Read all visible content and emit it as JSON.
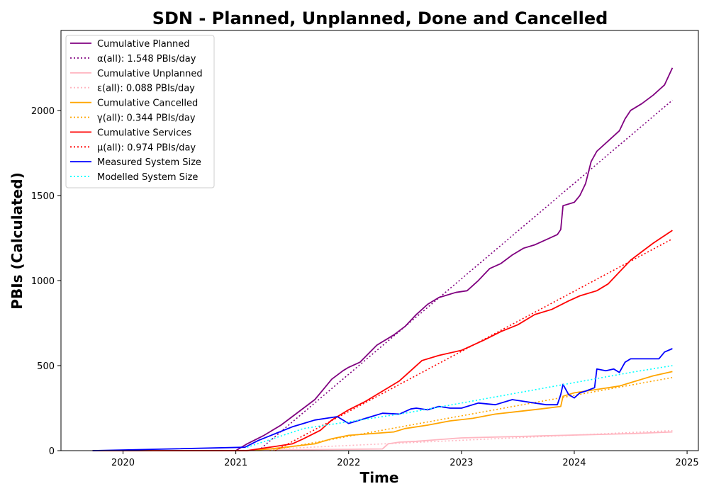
{
  "chart_data": {
    "type": "line",
    "title": "SDN - Planned, Unplanned, Done  and Cancelled",
    "xlabel": "Time",
    "ylabel": "PBIs (Calculated)",
    "x_ticks": [
      "2020",
      "2021",
      "2022",
      "2023",
      "2024",
      "2025"
    ],
    "y_ticks": [
      "0",
      "500",
      "1000",
      "1500",
      "2000"
    ],
    "xlim": [
      2019.45,
      2025.1
    ],
    "ylim": [
      0,
      2470
    ],
    "grid": false,
    "legend_position": "top-left",
    "series": [
      {
        "name": "Cumulative Planned",
        "color": "#800080",
        "style": "solid",
        "x": [
          2019.73,
          2021.0,
          2021.1,
          2021.25,
          2021.4,
          2021.5,
          2021.6,
          2021.7,
          2021.75,
          2021.85,
          2021.95,
          2022.0,
          2022.1,
          2022.25,
          2022.4,
          2022.5,
          2022.6,
          2022.7,
          2022.8,
          2022.85,
          2022.95,
          2023.05,
          2023.15,
          2023.25,
          2023.35,
          2023.45,
          2023.55,
          2023.65,
          2023.75,
          2023.85,
          2023.88,
          2023.9,
          2024.0,
          2024.05,
          2024.1,
          2024.15,
          2024.2,
          2024.3,
          2024.4,
          2024.45,
          2024.5,
          2024.6,
          2024.7,
          2024.8,
          2024.87
        ],
        "y": [
          0,
          0,
          40,
          90,
          150,
          200,
          250,
          300,
          340,
          420,
          470,
          490,
          520,
          620,
          680,
          730,
          800,
          860,
          900,
          910,
          930,
          940,
          1000,
          1070,
          1100,
          1150,
          1190,
          1210,
          1240,
          1270,
          1300,
          1440,
          1460,
          1500,
          1570,
          1700,
          1760,
          1820,
          1880,
          1950,
          2000,
          2040,
          2090,
          2150,
          2250
        ]
      },
      {
        "name": "α(all): 1.548 PBIs/day",
        "color": "#800080",
        "style": "dotted",
        "x": [
          2021.2,
          2024.87
        ],
        "y": [
          0,
          2060
        ]
      },
      {
        "name": "Cumulative Unplanned",
        "color": "#ffb6c1",
        "style": "solid",
        "x": [
          2019.73,
          2021.0,
          2021.3,
          2021.5,
          2022.0,
          2022.3,
          2022.35,
          2022.45,
          2022.6,
          2022.8,
          2023.0,
          2023.3,
          2023.6,
          2023.9,
          2024.2,
          2024.5,
          2024.87
        ],
        "y": [
          0,
          0,
          2,
          5,
          8,
          10,
          40,
          50,
          55,
          65,
          75,
          80,
          85,
          90,
          95,
          100,
          110
        ]
      },
      {
        "name": "ε(all): 0.088 PBIs/day",
        "color": "#ffb6c1",
        "style": "dotted",
        "x": [
          2021.0,
          2024.87
        ],
        "y": [
          0,
          118
        ]
      },
      {
        "name": "Cumulative Cancelled",
        "color": "#ffa500",
        "style": "solid",
        "x": [
          2019.73,
          2021.1,
          2021.3,
          2021.5,
          2021.7,
          2021.85,
          2022.0,
          2022.2,
          2022.4,
          2022.5,
          2022.7,
          2022.9,
          2023.1,
          2023.3,
          2023.5,
          2023.7,
          2023.88,
          2023.9,
          2024.0,
          2024.2,
          2024.4,
          2024.5,
          2024.6,
          2024.7,
          2024.87
        ],
        "y": [
          0,
          0,
          10,
          25,
          40,
          70,
          90,
          100,
          110,
          130,
          150,
          175,
          190,
          215,
          230,
          245,
          260,
          320,
          340,
          360,
          380,
          400,
          420,
          440,
          465
        ]
      },
      {
        "name": "γ(all): 0.344 PBIs/day",
        "color": "#ffa500",
        "style": "dotted",
        "x": [
          2021.3,
          2024.87
        ],
        "y": [
          0,
          430
        ]
      },
      {
        "name": "Cumulative Services",
        "color": "#ff0000",
        "style": "solid",
        "x": [
          2019.73,
          2021.1,
          2021.3,
          2021.5,
          2021.6,
          2021.75,
          2021.85,
          2022.0,
          2022.15,
          2022.3,
          2022.45,
          2022.55,
          2022.65,
          2022.8,
          2023.0,
          2023.2,
          2023.35,
          2023.5,
          2023.65,
          2023.8,
          2023.95,
          2024.05,
          2024.2,
          2024.3,
          2024.4,
          2024.5,
          2024.6,
          2024.7,
          2024.87
        ],
        "y": [
          0,
          0,
          20,
          40,
          70,
          120,
          180,
          240,
          290,
          350,
          410,
          470,
          530,
          560,
          590,
          650,
          700,
          740,
          800,
          830,
          880,
          910,
          940,
          980,
          1050,
          1120,
          1170,
          1220,
          1295
        ]
      },
      {
        "name": "μ(all): 0.974 PBIs/day",
        "color": "#ff0000",
        "style": "dotted",
        "x": [
          2021.35,
          2024.87
        ],
        "y": [
          0,
          1245
        ]
      },
      {
        "name": "Measured System Size",
        "color": "#0000ff",
        "style": "solid",
        "x": [
          2019.73,
          2021.08,
          2021.2,
          2021.35,
          2021.5,
          2021.6,
          2021.7,
          2021.8,
          2021.9,
          2022.0,
          2022.1,
          2022.2,
          2022.3,
          2022.45,
          2022.55,
          2022.6,
          2022.7,
          2022.8,
          2022.9,
          2023.0,
          2023.15,
          2023.3,
          2023.45,
          2023.55,
          2023.65,
          2023.75,
          2023.85,
          2023.88,
          2023.9,
          2023.95,
          2024.0,
          2024.05,
          2024.1,
          2024.18,
          2024.2,
          2024.28,
          2024.35,
          2024.4,
          2024.45,
          2024.5,
          2024.65,
          2024.75,
          2024.8,
          2024.87
        ],
        "y": [
          0,
          20,
          60,
          100,
          140,
          160,
          180,
          190,
          200,
          160,
          180,
          200,
          220,
          215,
          245,
          250,
          240,
          260,
          250,
          250,
          280,
          270,
          300,
          290,
          280,
          270,
          270,
          330,
          390,
          330,
          310,
          340,
          350,
          370,
          480,
          470,
          480,
          460,
          520,
          540,
          540,
          540,
          580,
          600
        ]
      },
      {
        "name": "Modelled System Size",
        "color": "#00ffff",
        "style": "dotted",
        "x": [
          2021.1,
          2021.6,
          2022.0,
          2022.5,
          2023.0,
          2023.5,
          2024.0,
          2024.5,
          2024.87
        ],
        "y": [
          20,
          130,
          170,
          220,
          280,
          340,
          400,
          460,
          500
        ]
      }
    ]
  }
}
